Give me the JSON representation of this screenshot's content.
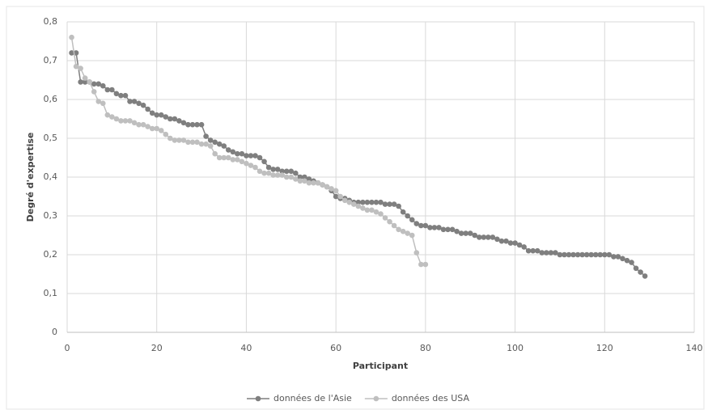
{
  "chart_data": {
    "type": "line",
    "xlabel": "Participant",
    "ylabel": "Degré d'expertise",
    "xlim": [
      0,
      140
    ],
    "xticks": [
      0,
      20,
      40,
      60,
      80,
      100,
      120,
      140
    ],
    "ylim": [
      0,
      0.8
    ],
    "yticks": [
      0,
      {
        "value": 0.1,
        "label": "0,1"
      },
      {
        "value": 0.2,
        "label": "0,2"
      },
      {
        "value": 0.3,
        "label": "0,3"
      },
      {
        "value": 0.4,
        "label": "0,4"
      },
      {
        "value": 0.5,
        "label": "0,5"
      },
      {
        "value": 0.6,
        "label": "0,6"
      },
      {
        "value": 0.7,
        "label": "0,7"
      },
      {
        "value": 0.8,
        "label": "0,8"
      }
    ],
    "grid": true,
    "legend": "bottom",
    "series": [
      {
        "name": "données de l'Asie",
        "color": "#7f7f7f",
        "x": [
          1,
          2,
          3,
          4,
          5,
          6,
          7,
          8,
          9,
          10,
          11,
          12,
          13,
          14,
          15,
          16,
          17,
          18,
          19,
          20,
          21,
          22,
          23,
          24,
          25,
          26,
          27,
          28,
          29,
          30,
          31,
          32,
          33,
          34,
          35,
          36,
          37,
          38,
          39,
          40,
          41,
          42,
          43,
          44,
          45,
          46,
          47,
          48,
          49,
          50,
          51,
          52,
          53,
          54,
          55,
          56,
          57,
          58,
          59,
          60,
          61,
          62,
          63,
          64,
          65,
          66,
          67,
          68,
          69,
          70,
          71,
          72,
          73,
          74,
          75,
          76,
          77,
          78,
          79,
          80,
          81,
          82,
          83,
          84,
          85,
          86,
          87,
          88,
          89,
          90,
          91,
          92,
          93,
          94,
          95,
          96,
          97,
          98,
          99,
          100,
          101,
          102,
          103,
          104,
          105,
          106,
          107,
          108,
          109,
          110,
          111,
          112,
          113,
          114,
          115,
          116,
          117,
          118,
          119,
          120,
          121,
          122,
          123,
          124,
          125,
          126,
          127,
          128,
          129
        ],
        "values": [
          0.72,
          0.72,
          0.645,
          0.645,
          0.645,
          0.64,
          0.64,
          0.635,
          0.625,
          0.625,
          0.615,
          0.61,
          0.61,
          0.595,
          0.595,
          0.59,
          0.585,
          0.575,
          0.565,
          0.56,
          0.56,
          0.555,
          0.55,
          0.55,
          0.545,
          0.54,
          0.535,
          0.535,
          0.535,
          0.535,
          0.505,
          0.495,
          0.49,
          0.485,
          0.48,
          0.47,
          0.465,
          0.46,
          0.46,
          0.455,
          0.455,
          0.455,
          0.45,
          0.44,
          0.425,
          0.42,
          0.42,
          0.415,
          0.415,
          0.415,
          0.41,
          0.4,
          0.4,
          0.395,
          0.39,
          0.385,
          0.38,
          0.375,
          0.365,
          0.35,
          0.345,
          0.345,
          0.34,
          0.335,
          0.335,
          0.335,
          0.335,
          0.335,
          0.335,
          0.335,
          0.33,
          0.33,
          0.33,
          0.325,
          0.31,
          0.3,
          0.29,
          0.28,
          0.275,
          0.275,
          0.27,
          0.27,
          0.27,
          0.265,
          0.265,
          0.265,
          0.26,
          0.255,
          0.255,
          0.255,
          0.25,
          0.245,
          0.245,
          0.245,
          0.245,
          0.24,
          0.235,
          0.235,
          0.23,
          0.23,
          0.225,
          0.22,
          0.21,
          0.21,
          0.21,
          0.205,
          0.205,
          0.205,
          0.205,
          0.2,
          0.2,
          0.2,
          0.2,
          0.2,
          0.2,
          0.2,
          0.2,
          0.2,
          0.2,
          0.2,
          0.2,
          0.195,
          0.195,
          0.19,
          0.185,
          0.18,
          0.165,
          0.155,
          0.145
        ]
      },
      {
        "name": "données des USA",
        "color": "#bfbfbf",
        "x": [
          1,
          2,
          3,
          4,
          5,
          6,
          7,
          8,
          9,
          10,
          11,
          12,
          13,
          14,
          15,
          16,
          17,
          18,
          19,
          20,
          21,
          22,
          23,
          24,
          25,
          26,
          27,
          28,
          29,
          30,
          31,
          32,
          33,
          34,
          35,
          36,
          37,
          38,
          39,
          40,
          41,
          42,
          43,
          44,
          45,
          46,
          47,
          48,
          49,
          50,
          51,
          52,
          53,
          54,
          55,
          56,
          57,
          58,
          59,
          60,
          61,
          62,
          63,
          64,
          65,
          66,
          67,
          68,
          69,
          70,
          71,
          72,
          73,
          74,
          75,
          76,
          77,
          78,
          79,
          80
        ],
        "values": [
          0.76,
          0.685,
          0.68,
          0.655,
          0.645,
          0.62,
          0.595,
          0.59,
          0.56,
          0.555,
          0.55,
          0.545,
          0.545,
          0.545,
          0.54,
          0.535,
          0.535,
          0.53,
          0.525,
          0.525,
          0.52,
          0.51,
          0.5,
          0.495,
          0.495,
          0.495,
          0.49,
          0.49,
          0.49,
          0.485,
          0.485,
          0.48,
          0.46,
          0.45,
          0.45,
          0.45,
          0.445,
          0.445,
          0.44,
          0.435,
          0.43,
          0.425,
          0.415,
          0.41,
          0.41,
          0.405,
          0.405,
          0.405,
          0.4,
          0.4,
          0.395,
          0.39,
          0.39,
          0.385,
          0.385,
          0.385,
          0.38,
          0.375,
          0.37,
          0.365,
          0.35,
          0.34,
          0.335,
          0.33,
          0.325,
          0.32,
          0.315,
          0.315,
          0.31,
          0.305,
          0.295,
          0.285,
          0.275,
          0.265,
          0.26,
          0.255,
          0.25,
          0.205,
          0.175,
          0.175
        ]
      }
    ]
  }
}
